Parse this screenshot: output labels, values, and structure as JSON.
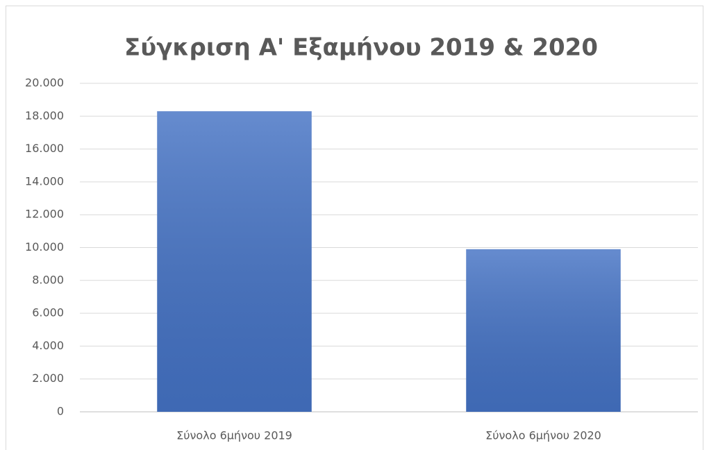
{
  "chart_data": {
    "type": "bar",
    "title": "Σύγκριση Α' Εξαμήνου 2019 & 2020",
    "categories": [
      "Σύνολο 6μήνου 2019",
      "Σύνολο 6μήνου 2020"
    ],
    "values": [
      18300,
      9900
    ],
    "color": "#4472c4",
    "ylim": [
      0,
      20000
    ],
    "yticks": [
      0,
      {
        "value": 2000,
        "label": "2.000"
      },
      {
        "value": 4000,
        "label": "4.000"
      },
      {
        "value": 6000,
        "label": "6.000"
      },
      {
        "value": 8000,
        "label": "8.000"
      },
      {
        "value": 10000,
        "label": "10.000"
      },
      {
        "value": 12000,
        "label": "12.000"
      },
      {
        "value": 14000,
        "label": "14.000"
      },
      {
        "value": 16000,
        "label": "16.000"
      },
      {
        "value": 18000,
        "label": "18.000"
      },
      {
        "value": 20000,
        "label": "20.000"
      }
    ],
    "grid": true
  }
}
